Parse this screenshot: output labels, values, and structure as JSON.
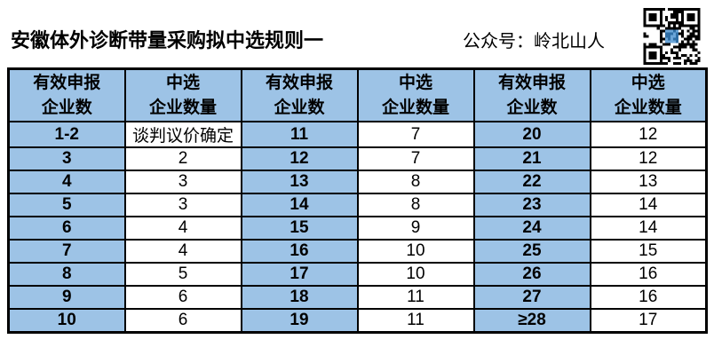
{
  "header": {
    "title": "安徽体外诊断带量采购拟中选规则一",
    "account": "公众号：岭北山人",
    "qr_label": "qr-code"
  },
  "colors": {
    "cell_blue": "#9DC3E6",
    "border": "#000000",
    "text": "#000000",
    "background": "#FFFFFF"
  },
  "table": {
    "headers": [
      {
        "line1": "有效申报",
        "line2": "企业数"
      },
      {
        "line1": "中选",
        "line2": "企业数量"
      },
      {
        "line1": "有效申报",
        "line2": "企业数"
      },
      {
        "line1": "中选",
        "line2": "企业数量"
      },
      {
        "line1": "有效申报",
        "line2": "企业数"
      },
      {
        "line1": "中选",
        "line2": "企业数量"
      }
    ],
    "rows": [
      [
        "1-2",
        "谈判议价确定",
        "11",
        "7",
        "20",
        "12"
      ],
      [
        "3",
        "2",
        "12",
        "7",
        "21",
        "12"
      ],
      [
        "4",
        "3",
        "13",
        "8",
        "22",
        "13"
      ],
      [
        "5",
        "3",
        "14",
        "8",
        "23",
        "14"
      ],
      [
        "6",
        "4",
        "15",
        "9",
        "24",
        "14"
      ],
      [
        "7",
        "4",
        "16",
        "10",
        "25",
        "15"
      ],
      [
        "8",
        "5",
        "17",
        "10",
        "26",
        "16"
      ],
      [
        "9",
        "6",
        "18",
        "11",
        "27",
        "16"
      ],
      [
        "10",
        "6",
        "19",
        "11",
        "≥28",
        "17"
      ]
    ]
  }
}
